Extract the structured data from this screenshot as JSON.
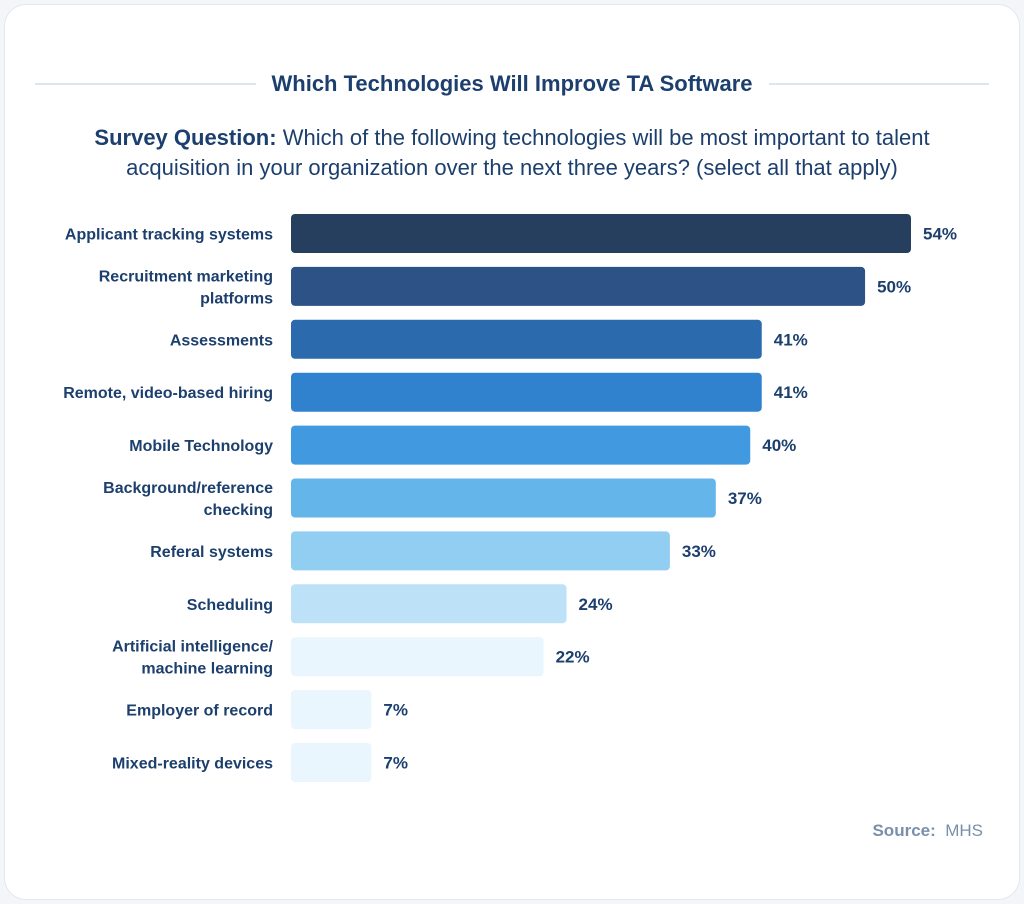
{
  "chart_data": {
    "type": "bar",
    "orientation": "horizontal",
    "title": "Which Technologies Will Improve TA Software",
    "subtitle_label": "Survey Question:",
    "subtitle": "Which of the following technologies will be most important to talent acquisition in your organization over the next three years? (select all that apply)",
    "categories": [
      [
        "Applicant tracking systems"
      ],
      [
        "Recruitment marketing",
        "platforms"
      ],
      [
        "Assessments"
      ],
      [
        "Remote, video-based hiring"
      ],
      [
        "Mobile Technology"
      ],
      [
        "Background/reference",
        "checking"
      ],
      [
        "Referal systems"
      ],
      [
        "Scheduling"
      ],
      [
        "Artificial intelligence/",
        "machine learning"
      ],
      [
        "Employer of record"
      ],
      [
        "Mixed-reality devices"
      ]
    ],
    "values": [
      54,
      50,
      41,
      41,
      40,
      37,
      33,
      24,
      22,
      7,
      7
    ],
    "data_labels": [
      "54%",
      "50%",
      "41%",
      "41%",
      "40%",
      "37%",
      "33%",
      "24%",
      "22%",
      "7%",
      "7%"
    ],
    "bar_colors": [
      "#263f5f",
      "#2c5286",
      "#2a6aad",
      "#3182ce",
      "#419ae0",
      "#63b5ea",
      "#92cdf2",
      "#bde2f7",
      "#eaf6fd",
      "#eaf6fd",
      "#eaf6fd"
    ],
    "xlim": [
      0,
      54
    ],
    "grid": false,
    "legend": "none",
    "unit": "%"
  },
  "source": {
    "label": "Source:",
    "value": "MHS"
  },
  "colors": {
    "text": "#1c3f6e",
    "source": "#7890aa"
  }
}
